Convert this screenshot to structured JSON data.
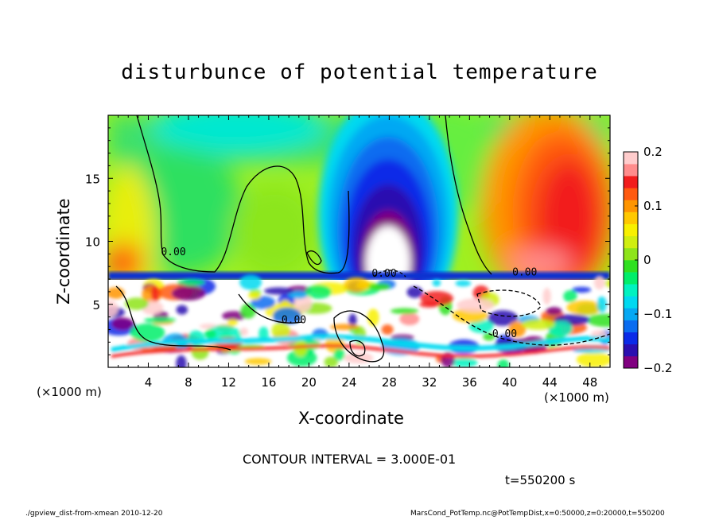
{
  "title": "disturbunce of potential temperature",
  "footer": {
    "left": "./gpview_dist-from-xmean  2010-12-20",
    "right": "MarsCond_PotTemp.nc@PotTempDist,x=0:50000,z=0:20000,t=550200"
  },
  "contour_interval": "CONTOUR INTERVAL = 3.000E-01",
  "time_label": "t=550200 s",
  "colors": {
    "scale": [
      "#800080",
      "#2b0fb0",
      "#0b2be8",
      "#0a6cf0",
      "#06a8f3",
      "#00d9f0",
      "#00f2c0",
      "#00ee6a",
      "#30e020",
      "#8ee41a",
      "#d0ee10",
      "#f8f000",
      "#ffc800",
      "#ff9500",
      "#ff5a10",
      "#f21d1d",
      "#ff8c8c",
      "#ffcccc"
    ],
    "neutral": "#ffffff",
    "contour": "#000000"
  },
  "chart_data": {
    "type": "heatmap",
    "title": "disturbunce of potential temperature",
    "xlabel": "X-coordinate",
    "ylabel": "Z-coordinate",
    "x_unit": "(×1000 m)",
    "xlim": [
      0,
      50
    ],
    "ylim": [
      0,
      20
    ],
    "x_ticks": [
      4,
      8,
      12,
      16,
      20,
      24,
      28,
      32,
      36,
      40,
      44,
      48
    ],
    "y_ticks": [
      5,
      10,
      15
    ],
    "colorbar": {
      "range": [
        -0.2,
        0.2
      ],
      "ticks": [
        -0.2,
        -0.1,
        0,
        0.1,
        0.2
      ],
      "tick_labels": [
        "−0.2",
        "−0.1",
        "0",
        "0.1",
        "0.2"
      ]
    },
    "contour_labels": [
      {
        "text": "0.00",
        "x": 6.5,
        "z": 8.9
      },
      {
        "text": "0.00",
        "x": 27.5,
        "z": 7.2
      },
      {
        "text": "0.00",
        "x": 41.5,
        "z": 7.3
      },
      {
        "text": "0.00",
        "x": 18.5,
        "z": 3.5
      },
      {
        "text": "0.00",
        "x": 39.5,
        "z": 2.4
      }
    ]
  }
}
